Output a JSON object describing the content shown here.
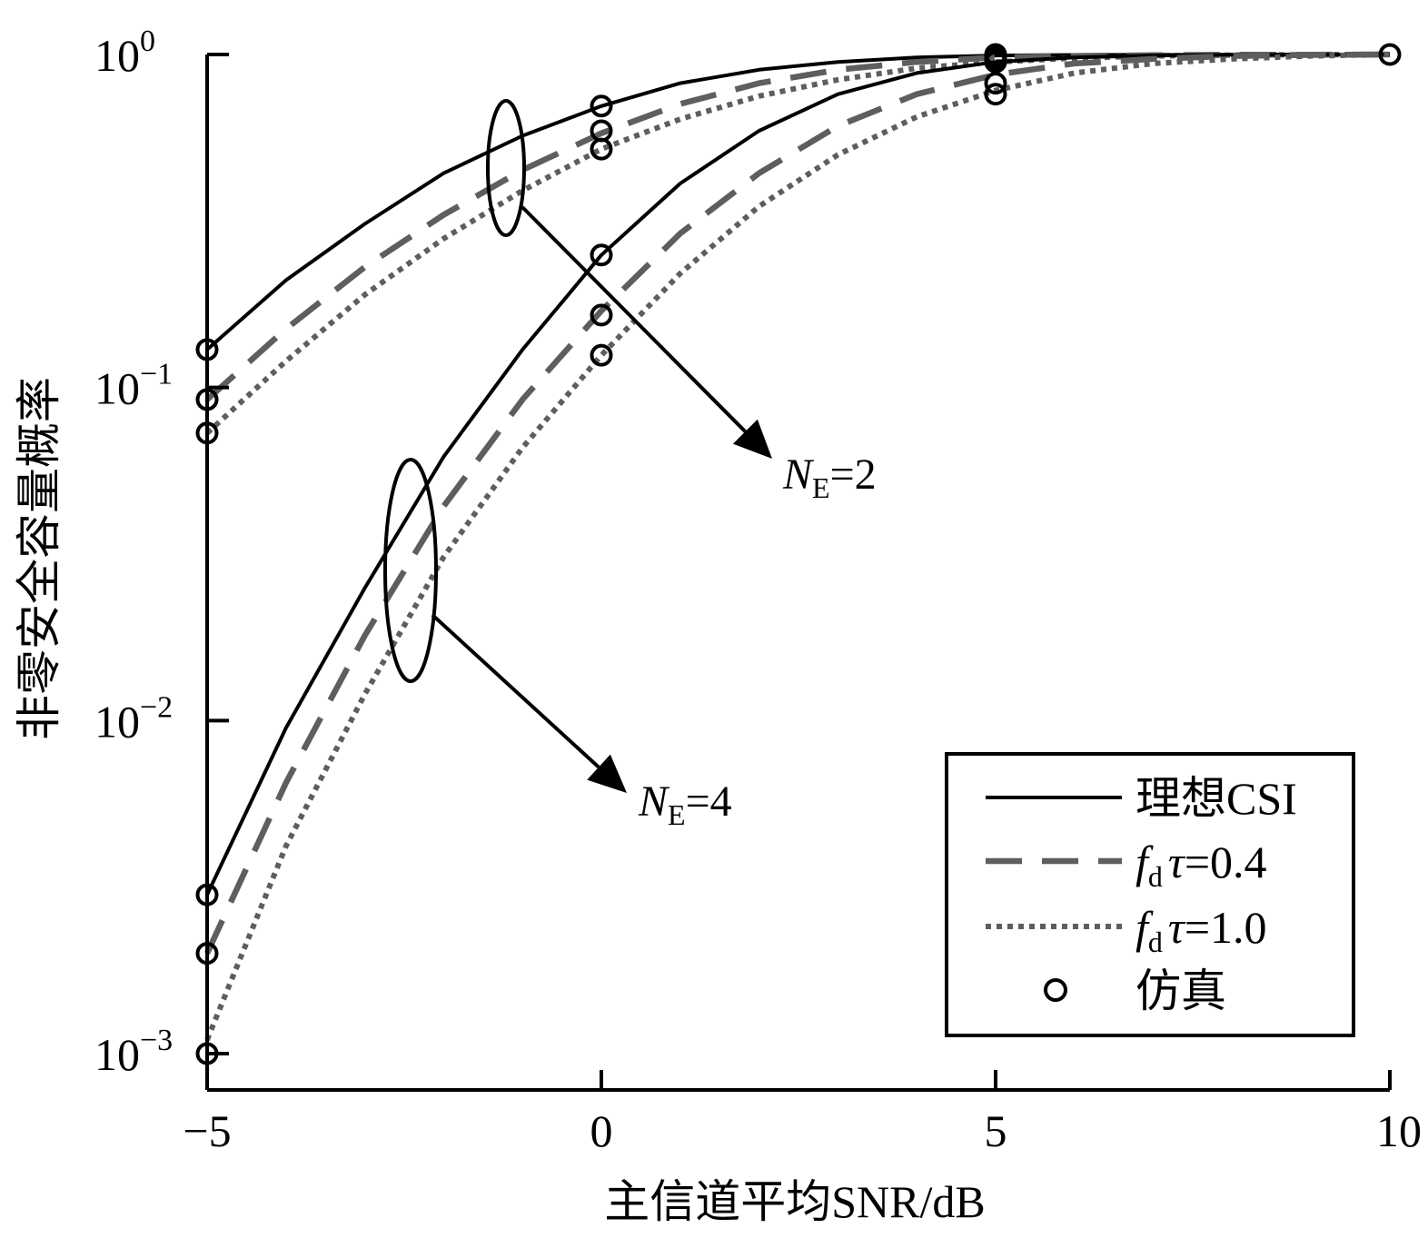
{
  "chart_data": {
    "type": "line",
    "xlabel": "主信道平均SNR/dB",
    "ylabel": "非零安全容量概率",
    "yscale": "log",
    "xlim": [
      -5,
      10
    ],
    "ylim": [
      0.0009,
      1
    ],
    "grid": false,
    "legend_position": "bottom-right",
    "x_ticks": [
      "−5",
      "0",
      "5",
      "10"
    ],
    "y_ticks": [
      {
        "base": "10",
        "exp": "0"
      },
      {
        "base": "10",
        "exp": "−1"
      },
      {
        "base": "10",
        "exp": "−2"
      },
      {
        "base": "10",
        "exp": "−3"
      }
    ],
    "legend": [
      {
        "style": "solid",
        "text": "理想CSI"
      },
      {
        "style": "dashed",
        "sym": "f",
        "sub": "d",
        "greek": "τ",
        "text": "=0.4"
      },
      {
        "style": "dotted",
        "sym": "f",
        "sub": "d",
        "greek": "τ",
        "text": "=1.0"
      },
      {
        "style": "marker",
        "text": "仿真"
      }
    ],
    "annotations": [
      {
        "sym": "N",
        "sub": "E",
        "text": "=2"
      },
      {
        "sym": "N",
        "sub": "E",
        "text": "=4"
      }
    ],
    "colors": {
      "solid": "#000000",
      "dashed": "#5e5e5e",
      "dotted": "#5e5e5e"
    },
    "series": [
      {
        "group": "N_E=2",
        "style": "solid",
        "x": [
          -5,
          -4,
          -3,
          -2,
          -1,
          0,
          1,
          2,
          3,
          4,
          5,
          6,
          7,
          8,
          9,
          10
        ],
        "y": [
          0.13,
          0.21,
          0.31,
          0.44,
          0.57,
          0.7,
          0.82,
          0.9,
          0.95,
          0.98,
          0.993,
          0.997,
          0.998,
          0.999,
          1.0,
          1.0
        ]
      },
      {
        "group": "N_E=2",
        "style": "dashed",
        "x": [
          -5,
          -4,
          -3,
          -2,
          -1,
          0,
          1,
          2,
          3,
          4,
          5,
          6,
          7,
          8,
          9,
          10
        ],
        "y": [
          0.092,
          0.15,
          0.23,
          0.33,
          0.45,
          0.58,
          0.71,
          0.82,
          0.9,
          0.95,
          0.98,
          0.99,
          0.995,
          0.998,
          0.999,
          1.0
        ]
      },
      {
        "group": "N_E=2",
        "style": "dotted",
        "x": [
          -5,
          -4,
          -3,
          -2,
          -1,
          0,
          1,
          2,
          3,
          4,
          5,
          6,
          7,
          8,
          9,
          10
        ],
        "y": [
          0.073,
          0.12,
          0.19,
          0.28,
          0.39,
          0.52,
          0.64,
          0.75,
          0.84,
          0.91,
          0.95,
          0.975,
          0.99,
          0.996,
          0.999,
          1.0
        ]
      },
      {
        "group": "N_E=4",
        "style": "solid",
        "x": [
          -5,
          -4,
          -3,
          -2,
          -1,
          0,
          1,
          2,
          3,
          4,
          5,
          6,
          7,
          8,
          9,
          10
        ],
        "y": [
          0.003,
          0.0095,
          0.025,
          0.062,
          0.13,
          0.25,
          0.41,
          0.59,
          0.76,
          0.88,
          0.95,
          0.98,
          0.993,
          0.998,
          0.999,
          1.0
        ]
      },
      {
        "group": "N_E=4",
        "style": "dashed",
        "x": [
          -5,
          -4,
          -3,
          -2,
          -1,
          0,
          1,
          2,
          3,
          4,
          5,
          6,
          7,
          8,
          9,
          10
        ],
        "y": [
          0.002,
          0.0065,
          0.018,
          0.044,
          0.092,
          0.17,
          0.29,
          0.44,
          0.61,
          0.76,
          0.87,
          0.94,
          0.97,
          0.99,
          0.997,
          1.0
        ]
      },
      {
        "group": "N_E=4",
        "style": "dotted",
        "x": [
          -5,
          -4,
          -3,
          -2,
          -1,
          0,
          1,
          2,
          3,
          4,
          5,
          6,
          7,
          8,
          9,
          10
        ],
        "y": [
          0.0011,
          0.0042,
          0.012,
          0.031,
          0.066,
          0.125,
          0.22,
          0.35,
          0.5,
          0.65,
          0.78,
          0.88,
          0.94,
          0.97,
          0.99,
          1.0
        ]
      }
    ],
    "simulation_points": [
      {
        "x": -5,
        "y": 0.13
      },
      {
        "x": -5,
        "y": 0.092
      },
      {
        "x": -5,
        "y": 0.073
      },
      {
        "x": -5,
        "y": 0.003
      },
      {
        "x": -5,
        "y": 0.002
      },
      {
        "x": -5,
        "y": 0.001
      },
      {
        "x": 0,
        "y": 0.7
      },
      {
        "x": 0,
        "y": 0.59
      },
      {
        "x": 0,
        "y": 0.52
      },
      {
        "x": 0,
        "y": 0.25
      },
      {
        "x": 0,
        "y": 0.165
      },
      {
        "x": 0,
        "y": 0.125
      },
      {
        "x": 5,
        "y": 1.0
      },
      {
        "x": 5,
        "y": 0.99
      },
      {
        "x": 5,
        "y": 0.97
      },
      {
        "x": 5,
        "y": 0.95
      },
      {
        "x": 5,
        "y": 0.82
      },
      {
        "x": 5,
        "y": 0.76
      },
      {
        "x": 10,
        "y": 1.0
      }
    ]
  }
}
